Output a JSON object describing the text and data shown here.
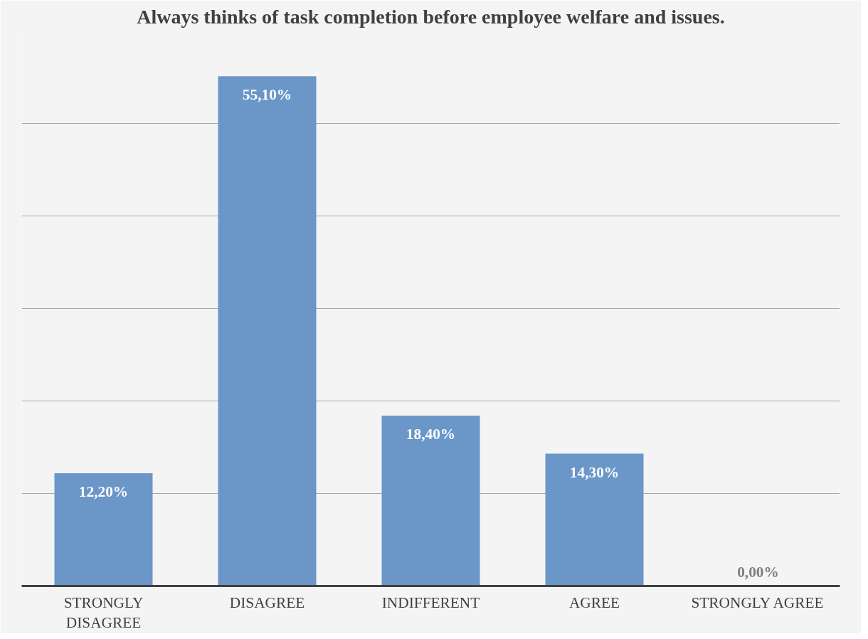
{
  "chart_data": {
    "type": "bar",
    "title": "Always thinks of task completion before employee welfare and issues.",
    "categories": [
      "STRONGLY DISAGREE",
      "DISAGREE",
      "INDIFFERENT",
      "AGREE",
      "STRONGLY AGREE"
    ],
    "values": [
      12.2,
      55.1,
      18.4,
      14.3,
      0.0
    ],
    "value_labels": [
      "12,20%",
      "55,10%",
      "18,40%",
      "14,30%",
      "0,00%"
    ],
    "color": "#6a96c8",
    "ylim": [
      0,
      60
    ],
    "yticks": [
      {
        "value": 0,
        "label": null
      },
      {
        "value": 10,
        "label": null
      },
      {
        "value": 20,
        "label": null
      },
      {
        "value": 30,
        "label": null
      },
      {
        "value": 40,
        "label": null
      },
      {
        "value": 50,
        "label": null
      },
      {
        "value": 60,
        "label": null
      }
    ],
    "grid": "y",
    "tick_labels": "x"
  }
}
